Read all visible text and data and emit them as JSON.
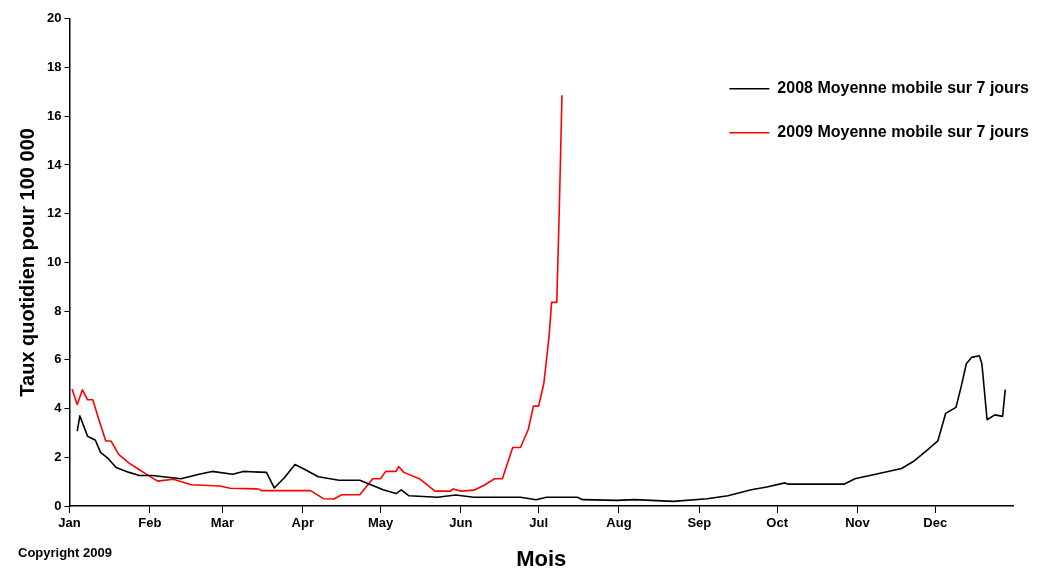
{
  "chart_data": {
    "type": "line",
    "xlabel": "Mois",
    "ylabel": "Taux quotidien pour 100 000",
    "xlim": [
      "--01-01",
      "--12-31"
    ],
    "ylim": [
      0,
      20
    ],
    "xticks": [
      {
        "value": "--01-01",
        "label": "Jan"
      },
      {
        "value": "--02-01",
        "label": "Feb"
      },
      {
        "value": "--03-01",
        "label": "Mar"
      },
      {
        "value": "--04-01",
        "label": "Apr"
      },
      {
        "value": "--05-01",
        "label": "May"
      },
      {
        "value": "--06-01",
        "label": "Jun"
      },
      {
        "value": "--07-01",
        "label": "Jul"
      },
      {
        "value": "--08-01",
        "label": "Aug"
      },
      {
        "value": "--09-01",
        "label": "Sep"
      },
      {
        "value": "--10-01",
        "label": "Oct"
      },
      {
        "value": "--11-01",
        "label": "Nov"
      },
      {
        "value": "--12-01",
        "label": "Dec"
      }
    ],
    "yticks": [
      0,
      2,
      4,
      6,
      8,
      10,
      12,
      14,
      16,
      18,
      20
    ],
    "grid": false,
    "legend": "top right",
    "marker": "none",
    "line_style": "solid",
    "annotations": [
      "Copyright 2009"
    ],
    "series": [
      {
        "name": "2008 Moyenne mobile sur 7 jours",
        "color": "#000000",
        "x": [
          "--01-04",
          "--01-05",
          "--01-08",
          "--01-11",
          "--01-13",
          "--01-16",
          "--01-19",
          "--01-24",
          "--01-28",
          "--02-02",
          "--02-13",
          "--02-20",
          "--02-25",
          "--03-05",
          "--03-09",
          "--03-18",
          "--03-21",
          "--03-25",
          "--03-29",
          "--04-02",
          "--04-07",
          "--04-15",
          "--04-23",
          "--05-02",
          "--05-07",
          "--05-09",
          "--05-12",
          "--05-23",
          "--05-30",
          "--06-06",
          "--06-24",
          "--06-30",
          "--07-04",
          "--07-16",
          "--07-18",
          "--07-31",
          "--08-07",
          "--08-22",
          "--09-04",
          "--09-12",
          "--09-21",
          "--09-27",
          "--10-04",
          "--10-05",
          "--10-27",
          "--10-31",
          "--11-08",
          "--11-18",
          "--11-23",
          "--11-28",
          "--12-02",
          "--12-05",
          "--12-09",
          "--12-11",
          "--12-13",
          "--12-15",
          "--12-18",
          "--12-19",
          "--12-21",
          "--12-24",
          "--12-27",
          "--12-28"
        ],
        "values": [
          3.07,
          3.7,
          2.86,
          2.7,
          2.2,
          1.94,
          1.58,
          1.38,
          1.25,
          1.25,
          1.12,
          1.3,
          1.42,
          1.3,
          1.42,
          1.38,
          0.74,
          1.17,
          1.7,
          1.49,
          1.2,
          1.06,
          1.06,
          0.67,
          0.51,
          0.66,
          0.42,
          0.36,
          0.45,
          0.36,
          0.36,
          0.26,
          0.36,
          0.36,
          0.26,
          0.23,
          0.26,
          0.19,
          0.3,
          0.42,
          0.67,
          0.78,
          0.95,
          0.9,
          0.9,
          1.12,
          1.3,
          1.54,
          1.86,
          2.3,
          2.67,
          3.8,
          4.05,
          4.9,
          5.84,
          6.1,
          6.17,
          5.84,
          3.54,
          3.74,
          3.68,
          4.78
        ]
      },
      {
        "name": "2009 Moyenne mobile sur 7 jours",
        "color": "#ff0000",
        "x": [
          "--01-02",
          "--01-04",
          "--01-06",
          "--01-08",
          "--01-10",
          "--01-12",
          "--01-15",
          "--01-17",
          "--01-20",
          "--01-24",
          "--01-28",
          "--01-30",
          "--02-04",
          "--02-10",
          "--02-17",
          "--02-28",
          "--03-04",
          "--03-15",
          "--03-16",
          "--04-04",
          "--04-09",
          "--04-13",
          "--04-16",
          "--04-23",
          "--04-28",
          "--05-01",
          "--05-03",
          "--05-07",
          "--05-08",
          "--05-10",
          "--05-16",
          "--05-22",
          "--05-28",
          "--05-29",
          "--06-01",
          "--06-06",
          "--06-10",
          "--06-14",
          "--06-17",
          "--06-21",
          "--06-24",
          "--06-27",
          "--06-29",
          "--07-01",
          "--07-03",
          "--07-05",
          "--07-06",
          "--07-08",
          "--07-09",
          "--07-10"
        ],
        "values": [
          4.8,
          4.17,
          4.77,
          4.36,
          4.36,
          3.66,
          2.67,
          2.67,
          2.12,
          1.76,
          1.49,
          1.35,
          1.02,
          1.1,
          0.87,
          0.82,
          0.73,
          0.7,
          0.63,
          0.63,
          0.3,
          0.29,
          0.46,
          0.46,
          1.12,
          1.12,
          1.42,
          1.42,
          1.62,
          1.38,
          1.12,
          0.61,
          0.61,
          0.7,
          0.61,
          0.65,
          0.85,
          1.12,
          1.12,
          2.4,
          2.4,
          3.14,
          4.1,
          4.1,
          5.03,
          6.94,
          8.36,
          8.36,
          12.3,
          16.86
        ]
      }
    ]
  }
}
